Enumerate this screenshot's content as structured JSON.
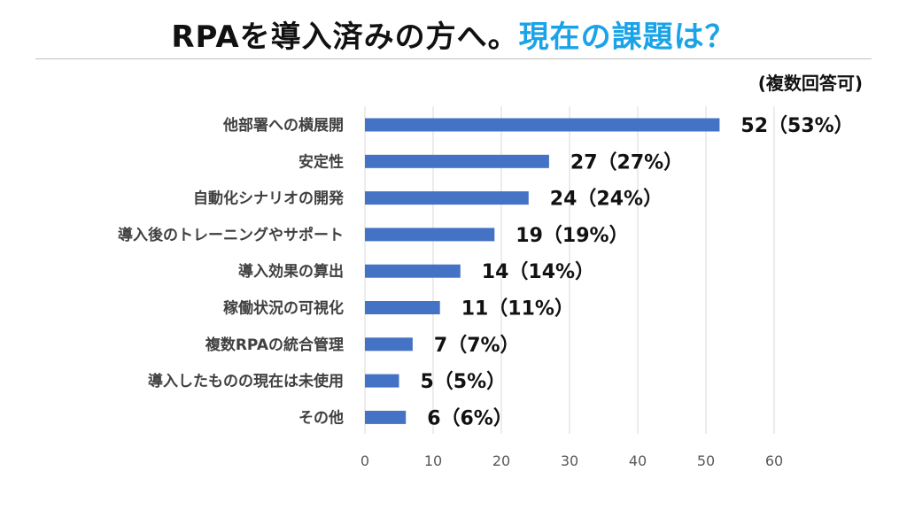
{
  "title": {
    "main": "RPAを導入済みの方へ。",
    "accent": "現在の課題は？"
  },
  "note": "(複数回答可)",
  "colors": {
    "bar": "#4472c4",
    "accent": "#1aa3e8",
    "grid": "#d9d9d9"
  },
  "chart_data": {
    "type": "bar",
    "orientation": "horizontal",
    "categories": [
      "他部署への横展開",
      "安定性",
      "自動化シナリオの開発",
      "導入後のトレーニングやサポート",
      "導入効果の算出",
      "稼働状況の可視化",
      "複数RPAの統合管理",
      "導入したものの現在は未使用",
      "その他"
    ],
    "values": [
      52,
      27,
      24,
      19,
      14,
      11,
      7,
      5,
      6
    ],
    "data_labels": [
      "52（53%）",
      "27（27%）",
      "24（24%）",
      "19（19%）",
      "14（14%）",
      "11（11%）",
      "7（7%）",
      "5（5%）",
      "6（6%）"
    ],
    "xlim": [
      0,
      60
    ],
    "xticks": [
      "0",
      "10",
      "20",
      "30",
      "40",
      "50",
      "60"
    ],
    "grid": true,
    "legend": "none"
  }
}
